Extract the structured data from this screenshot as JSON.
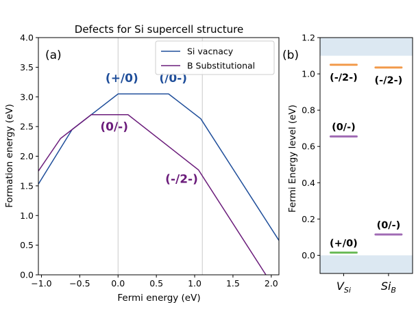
{
  "chart_data": [
    {
      "type": "line",
      "panel_label": "(a)",
      "title": "Defects for Si supercell structure",
      "xlabel": "Fermi energy (eV)",
      "ylabel": "Formation energy (eV)",
      "xlim": [
        -1.04,
        2.1
      ],
      "ylim": [
        0.0,
        4.0
      ],
      "xticks": [
        "−1.0",
        "−0.5",
        "0.0",
        "0.5",
        "1.0",
        "1.5",
        "2.0"
      ],
      "xtick_values": [
        -1.0,
        -0.5,
        0.0,
        0.5,
        1.0,
        1.5,
        2.0
      ],
      "yticks": [
        "0.0",
        "0.5",
        "1.0",
        "1.5",
        "2.0",
        "2.5",
        "3.0",
        "3.5",
        "4.0"
      ],
      "ytick_values": [
        0.0,
        0.5,
        1.0,
        1.5,
        2.0,
        2.5,
        3.0,
        3.5,
        4.0
      ],
      "band_edges": [
        0.0,
        1.1
      ],
      "legend_position": "top-right",
      "series": [
        {
          "name": "Si vacnacy",
          "color": "#1f4e9a",
          "x": [
            -1.04,
            -0.6,
            0.0,
            0.66,
            1.08,
            2.1
          ],
          "y": [
            1.53,
            2.45,
            3.05,
            3.05,
            2.63,
            0.58
          ]
        },
        {
          "name": "B Substitutional",
          "color": "#6a1b7a",
          "x": [
            -1.04,
            -0.75,
            -0.35,
            0.13,
            1.05,
            1.93
          ],
          "y": [
            1.75,
            2.3,
            2.7,
            2.7,
            1.77,
            0.0
          ]
        }
      ],
      "annotations": [
        {
          "text": "(+/0)",
          "x": 0.05,
          "y": 3.25,
          "color": "#1f4e9a"
        },
        {
          "text": "(/0-)",
          "x": 0.72,
          "y": 3.25,
          "color": "#1f4e9a"
        },
        {
          "text": "(0/-)",
          "x": -0.05,
          "y": 2.43,
          "color": "#6a1b7a"
        },
        {
          "text": "(-/2-)",
          "x": 0.83,
          "y": 1.55,
          "color": "#6a1b7a"
        }
      ]
    },
    {
      "type": "level-diagram",
      "panel_label": "(b)",
      "ylabel": "Fermi Energy level (eV)",
      "ylim": [
        -0.1,
        1.2
      ],
      "yticks": [
        "0.0",
        "0.2",
        "0.4",
        "0.6",
        "0.8",
        "1.0",
        "1.2"
      ],
      "ytick_values": [
        0.0,
        0.2,
        0.4,
        0.6,
        0.8,
        1.0,
        1.2
      ],
      "shaded_regions": [
        [
          -0.1,
          0.0
        ],
        [
          1.1,
          1.2
        ]
      ],
      "shade_color": "#dce8f2",
      "categories": [
        {
          "main": "V",
          "sub": "Si"
        },
        {
          "main": "Si",
          "sub": "B"
        }
      ],
      "levels": [
        {
          "category": 0,
          "label": "(-/2-)",
          "energy": 1.05,
          "color": "#f29a4a"
        },
        {
          "category": 0,
          "label": "(0/-)",
          "energy": 0.655,
          "color": "#a06ab4"
        },
        {
          "category": 0,
          "label": "(+/0)",
          "energy": 0.015,
          "color": "#6cbb5a"
        },
        {
          "category": 1,
          "label": "(-/2-)",
          "energy": 1.035,
          "color": "#f29a4a"
        },
        {
          "category": 1,
          "label": "(0/-)",
          "energy": 0.115,
          "color": "#a06ab4"
        }
      ]
    }
  ]
}
